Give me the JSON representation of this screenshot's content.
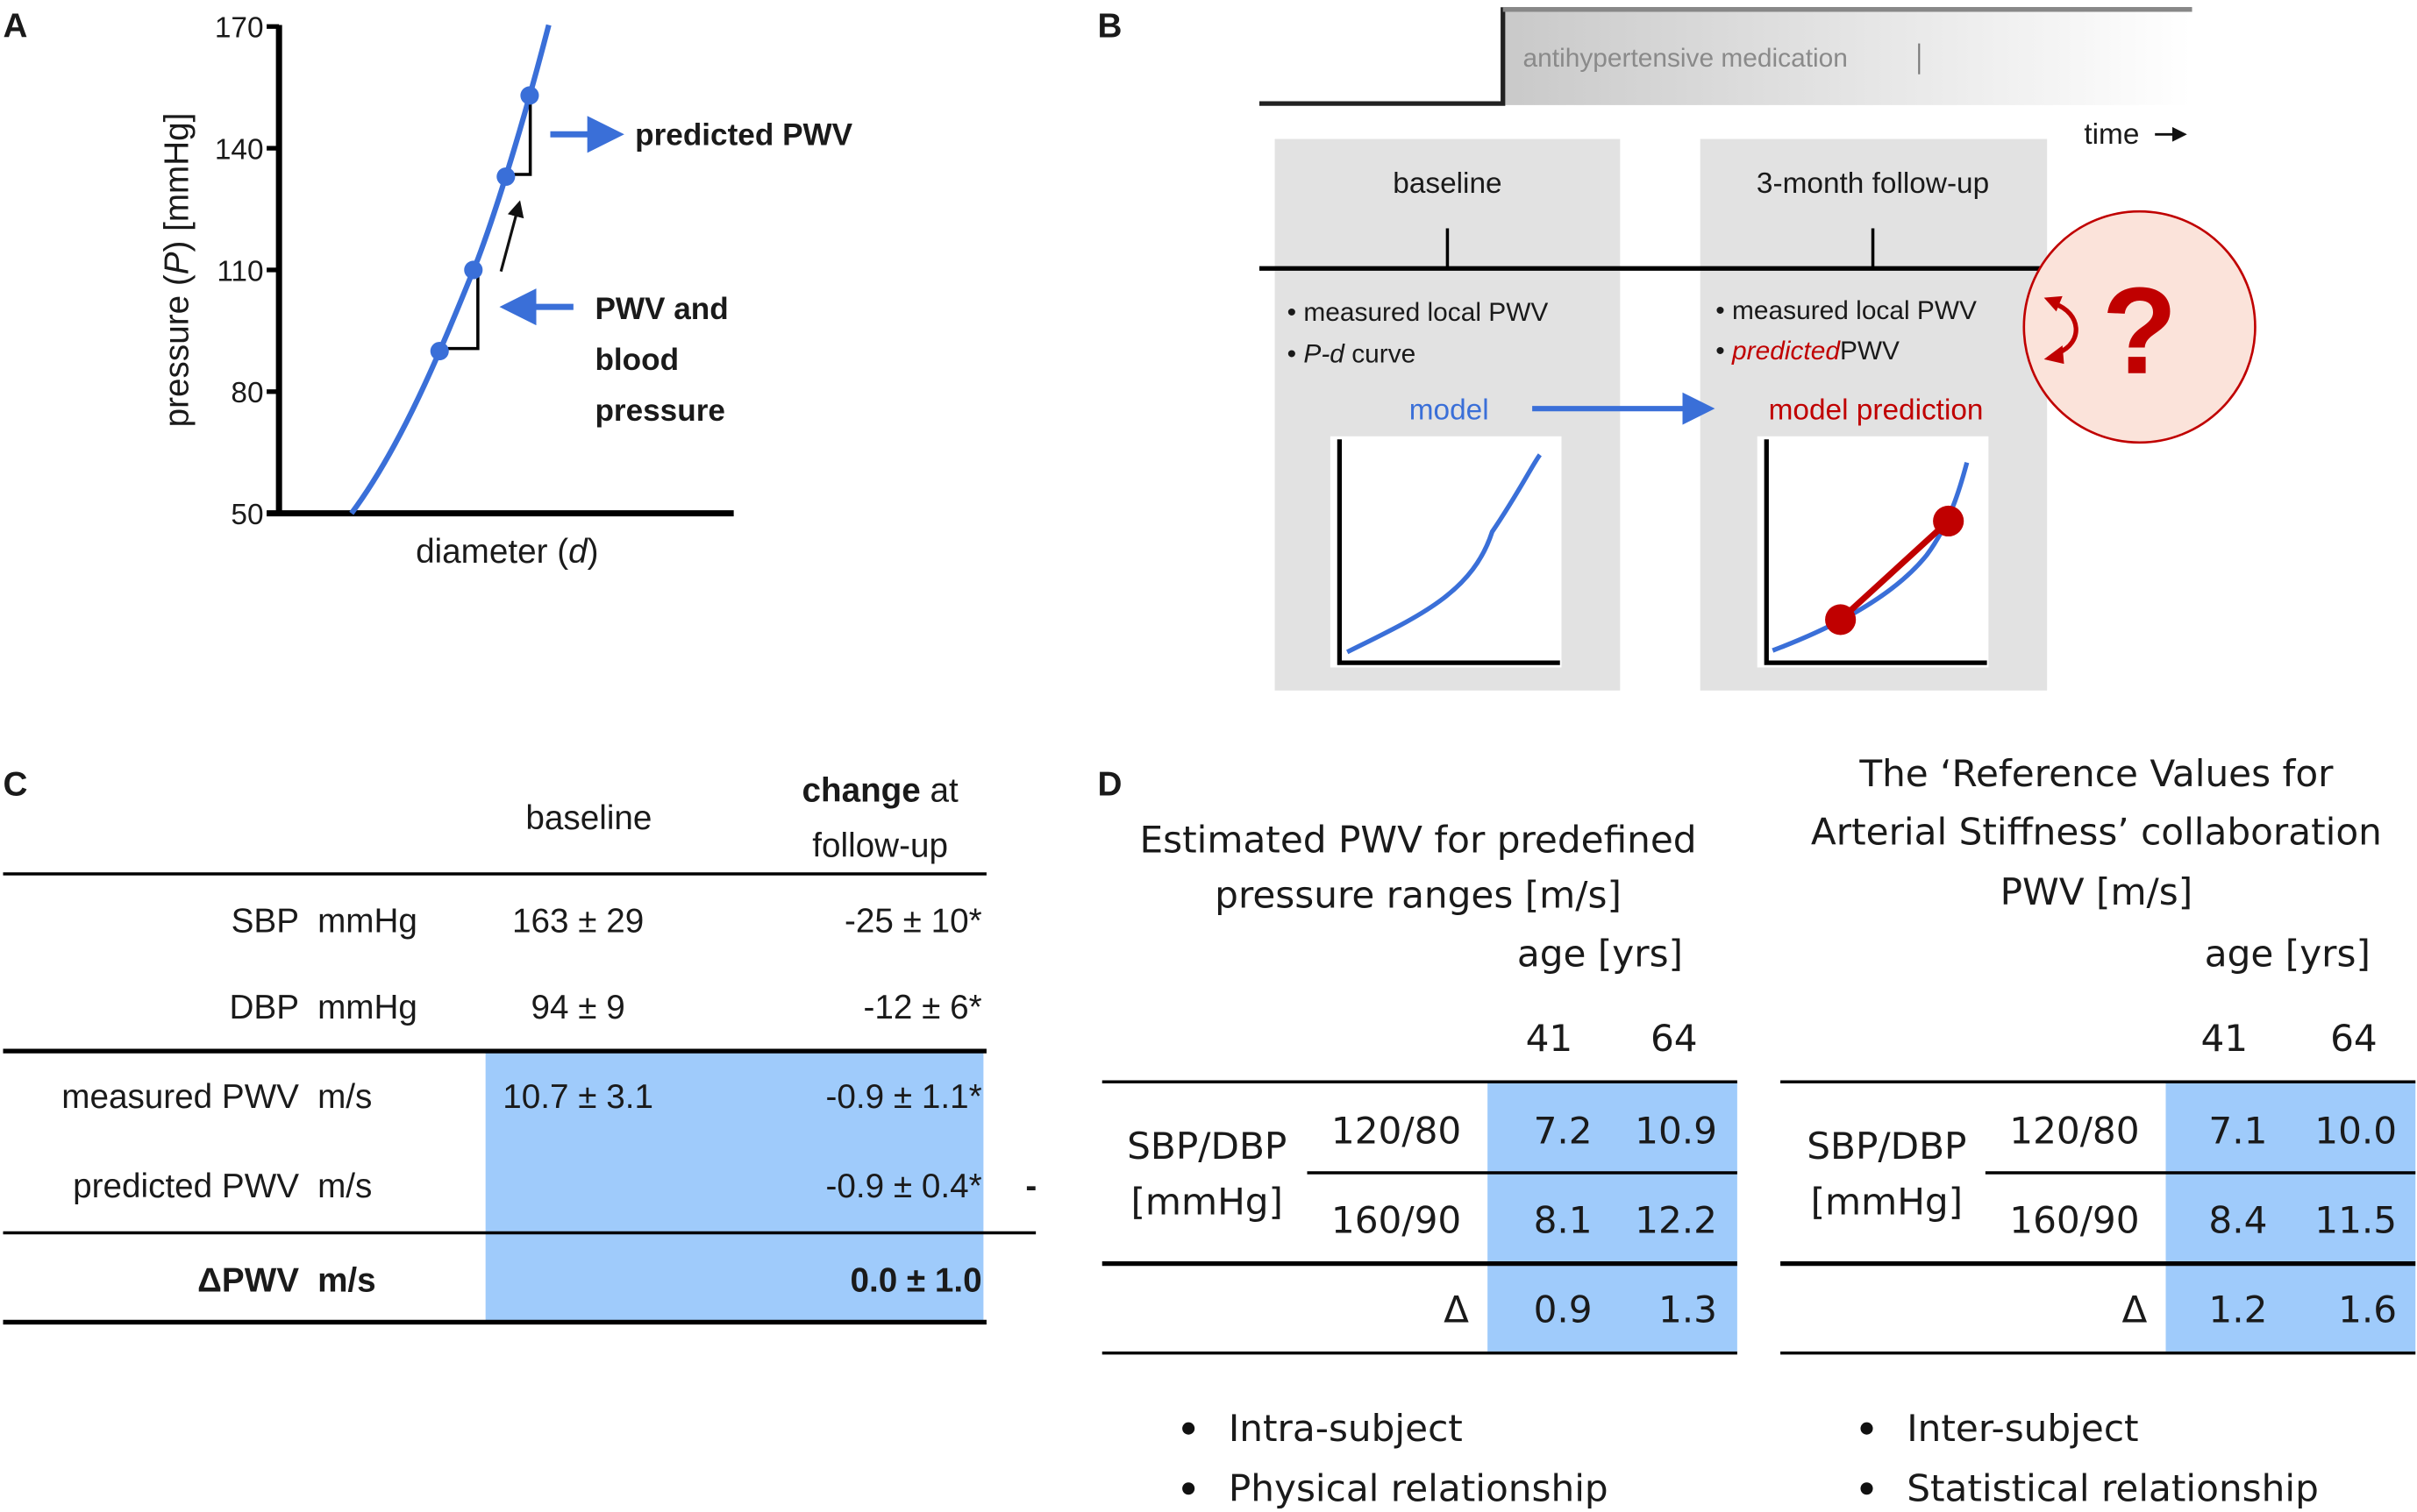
{
  "panels": {
    "A": {
      "label": "A",
      "ylabel_parts": [
        "pressure (",
        "P",
        ") [mmHg]"
      ],
      "xlabel_parts": [
        "diameter (",
        "d",
        ")"
      ],
      "annotation_predicted": "predicted PWV",
      "annotation_measured": [
        "PWV and",
        "blood",
        "pressure"
      ]
    },
    "B": {
      "label": "B",
      "medication_label": "antihypertensive medication",
      "time_label": "time",
      "baseline": {
        "title": "baseline",
        "bullets": [
          {
            "italic": "",
            "text": "measured local PWV"
          },
          {
            "italic": "P-d",
            "text": " curve"
          }
        ],
        "model_label": "model"
      },
      "followup": {
        "title": "3-month follow-up",
        "bullets": [
          {
            "italic": "",
            "text": "measured local PWV"
          },
          {
            "italic": "predicted",
            "text": "PWV"
          }
        ],
        "model_label": "model prediction"
      },
      "question_mark": "?"
    },
    "C": {
      "label": "C",
      "header_baseline": "baseline",
      "header_change_bold": "change",
      "header_change_rest": " at",
      "header_change_line2": "follow-up",
      "rows": [
        {
          "name": "SBP",
          "unit": "mmHg",
          "baseline": "163 ± 29",
          "change": "-25 ± 10*"
        },
        {
          "name": "DBP",
          "unit": "mmHg",
          "baseline": "94 ± 9",
          "change": "-12 ± 6*"
        },
        {
          "name": "measured PWV",
          "unit": "m/s",
          "baseline": "10.7 ± 3.1",
          "change": "-0.9 ± 1.1*"
        },
        {
          "name": "predicted PWV",
          "unit": "m/s",
          "baseline": "",
          "change": "-0.9 ± 0.4*"
        },
        {
          "name": "ΔPWV",
          "unit": "m/s",
          "baseline": "",
          "change": "0.0 ± 1.0"
        }
      ],
      "stray_mark": "-"
    },
    "D": {
      "label": "D",
      "tables": [
        {
          "title_lines": [
            "Estimated PWV for predefined",
            "pressure ranges [m/s]"
          ],
          "age_header": "age [yrs]",
          "ages": [
            "41",
            "64"
          ],
          "row_group_label": [
            "SBP/DBP",
            "[mmHg]"
          ],
          "rows": [
            {
              "pressure": "120/80",
              "values": [
                "7.2",
                "10.9"
              ]
            },
            {
              "pressure": "160/90",
              "values": [
                "8.1",
                "12.2"
              ]
            }
          ],
          "delta_label": "Δ",
          "delta_values": [
            "0.9",
            "1.3"
          ],
          "bullets": [
            "Intra-subject",
            "Physical relationship"
          ]
        },
        {
          "title_lines": [
            "The ‘Reference Values for",
            "Arterial Stiffness’ collaboration",
            "PWV [m/s]"
          ],
          "age_header": "age [yrs]",
          "ages": [
            "41",
            "64"
          ],
          "row_group_label": [
            "SBP/DBP",
            "[mmHg]"
          ],
          "rows": [
            {
              "pressure": "120/80",
              "values": [
                "7.1",
                "10.0"
              ]
            },
            {
              "pressure": "160/90",
              "values": [
                "8.4",
                "11.5"
              ]
            }
          ],
          "delta_label": "Δ",
          "delta_values": [
            "1.2",
            "1.6"
          ],
          "bullets": [
            "Inter-subject",
            "Statistical relationship"
          ]
        }
      ]
    }
  },
  "colors": {
    "curve_blue": "#3a6fd8",
    "prediction_red": "#c00000",
    "cell_blue": "#9fcbfb",
    "panel_gray": "#e2e2e2",
    "circle_fill": "#fbe3da"
  },
  "chart_data": {
    "type": "line",
    "title": "",
    "xlabel": "diameter (d)",
    "ylabel": "pressure (P) [mmHg]",
    "ylim": [
      50,
      170
    ],
    "yticks": [
      50,
      80,
      110,
      140,
      170
    ],
    "xticks": [],
    "series": [
      {
        "name": "P-d curve",
        "x": [
          0.0,
          0.1,
          0.2,
          0.3,
          0.4,
          0.5,
          0.55
        ],
        "y": [
          50,
          66,
          82,
          100,
          120,
          145,
          170
        ]
      }
    ],
    "points": [
      {
        "label": "measured-low",
        "P": 90
      },
      {
        "label": "measured-high",
        "P": 110
      },
      {
        "label": "predicted-low",
        "P": 133
      },
      {
        "label": "predicted-high",
        "P": 153
      }
    ],
    "grid": false,
    "legend": "none"
  }
}
